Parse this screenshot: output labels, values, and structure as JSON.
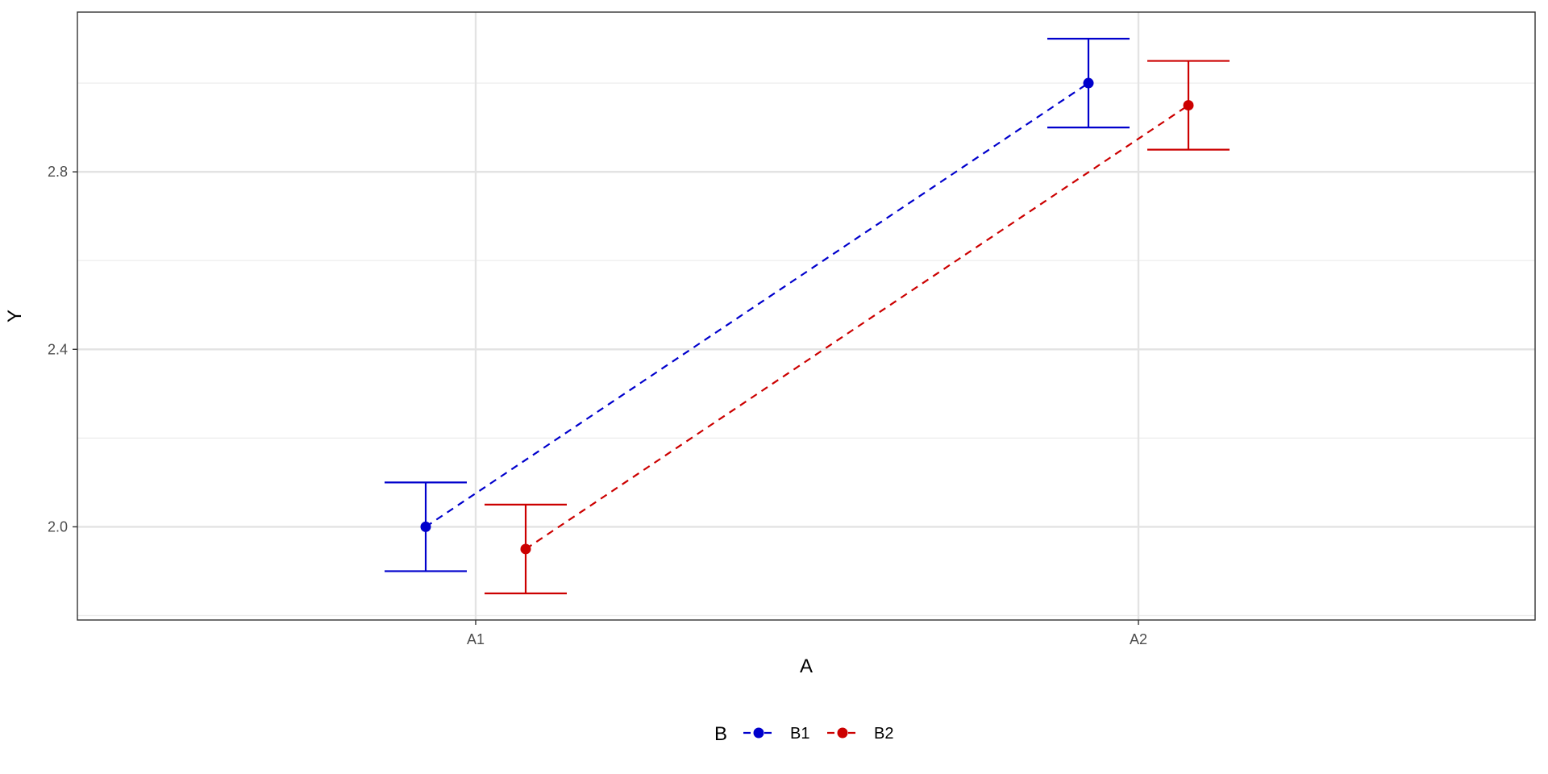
{
  "chart_data": {
    "type": "line",
    "title": "",
    "xlabel": "A",
    "ylabel": "Y",
    "categories": [
      "A1",
      "A2"
    ],
    "ylim": [
      1.79,
      3.16
    ],
    "yticks": [
      "2.0",
      "2.4",
      "2.8"
    ],
    "ytick_values": [
      2.0,
      2.4,
      2.8
    ],
    "grid": true,
    "line_style": "dashed",
    "error_bars": true,
    "legend": {
      "title": "B",
      "placement": "bottom"
    },
    "series": [
      {
        "name": "B1",
        "color": "#0000CC",
        "values": [
          2.0,
          3.0
        ],
        "lower": [
          1.9,
          2.9
        ],
        "upper": [
          2.1,
          3.1
        ]
      },
      {
        "name": "B2",
        "color": "#CC0000",
        "values": [
          1.95,
          2.95
        ],
        "lower": [
          1.85,
          2.85
        ],
        "upper": [
          2.05,
          3.05
        ]
      }
    ]
  }
}
